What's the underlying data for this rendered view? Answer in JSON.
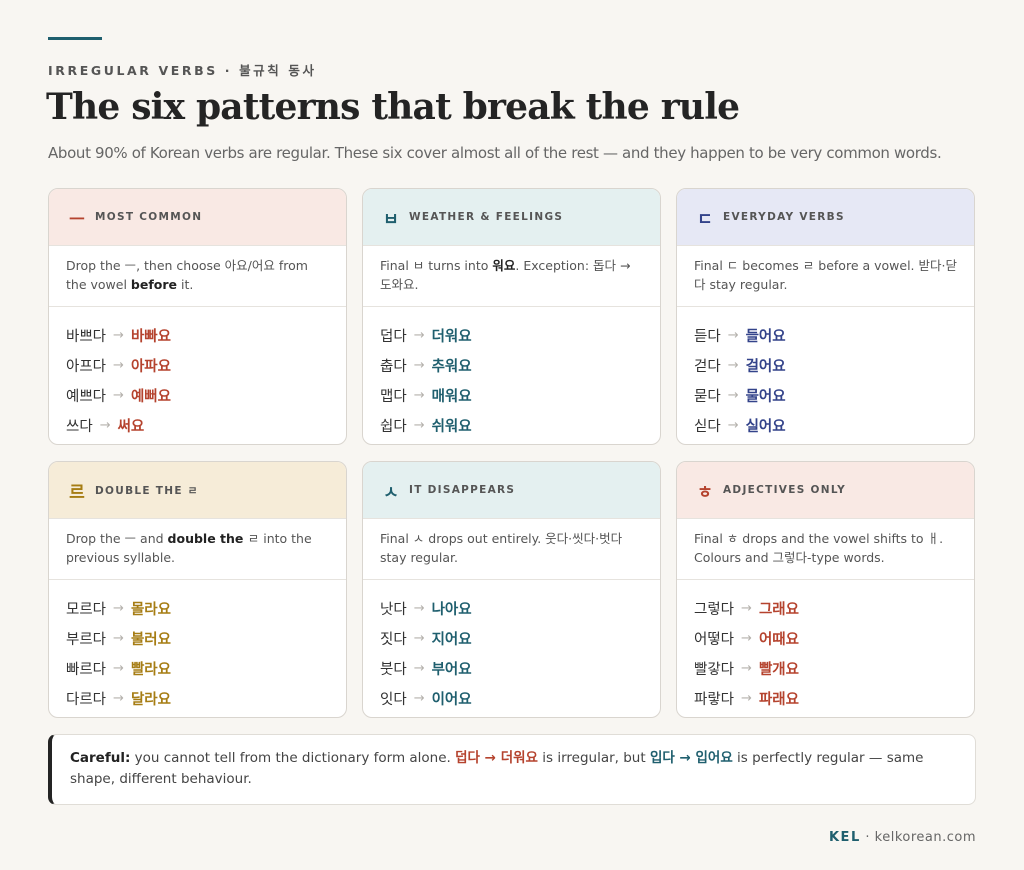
{
  "eyebrow": "IRREGULAR VERBS · 불규칙 동사",
  "title": "The six patterns that break the rule",
  "subtitle": "About 90% of Korean verbs are regular. These six cover almost all of the rest — and they happen to be very common words.",
  "colors": {
    "red": "#b5432e",
    "teal": "#1f5f6e",
    "navy": "#33438a",
    "gold": "#a67d14",
    "pink_head": "#f9e9e4",
    "teal_head": "#e4f0f0",
    "lavender_head": "#e6e8f5",
    "cream_head": "#f6ecd8"
  },
  "cards": [
    {
      "icon": "ㅡ",
      "label": "MOST COMMON",
      "desc": [
        {
          "t": "Drop the "
        },
        {
          "t": "ㅡ"
        },
        {
          "t": ", then choose 아요/어요 from the vowel "
        },
        {
          "t": "before",
          "b": true
        },
        {
          "t": " it."
        }
      ],
      "examples": [
        {
          "base": "바쁘다",
          "arrow": "→",
          "form": "바빠요"
        },
        {
          "base": "아프다",
          "arrow": "→",
          "form": "아파요"
        },
        {
          "base": "예쁘다",
          "arrow": "→",
          "form": "예뻐요"
        },
        {
          "base": "쓰다",
          "arrow": "→",
          "form": "써요"
        }
      ]
    },
    {
      "icon": "ㅂ",
      "label": "WEATHER & FEELINGS",
      "desc": [
        {
          "t": "Final "
        },
        {
          "t": "ㅂ"
        },
        {
          "t": " turns into "
        },
        {
          "t": "워요",
          "b": true
        },
        {
          "t": ". Exception: 돕다 → 도와요."
        }
      ],
      "examples": [
        {
          "base": "덥다",
          "arrow": "→",
          "form": "더워요"
        },
        {
          "base": "춥다",
          "arrow": "→",
          "form": "추워요"
        },
        {
          "base": "맵다",
          "arrow": "→",
          "form": "매워요"
        },
        {
          "base": "쉽다",
          "arrow": "→",
          "form": "쉬워요"
        }
      ]
    },
    {
      "icon": "ㄷ",
      "label": "EVERYDAY VERBS",
      "desc": [
        {
          "t": "Final "
        },
        {
          "t": "ㄷ"
        },
        {
          "t": " becomes "
        },
        {
          "t": "ㄹ"
        },
        {
          "t": " before a vowel. 받다·닫다 stay regular."
        }
      ],
      "examples": [
        {
          "base": "듣다",
          "arrow": "→",
          "form": "들어요"
        },
        {
          "base": "걷다",
          "arrow": "→",
          "form": "걸어요"
        },
        {
          "base": "묻다",
          "arrow": "→",
          "form": "물어요"
        },
        {
          "base": "싣다",
          "arrow": "→",
          "form": "실어요"
        }
      ]
    },
    {
      "icon": "르",
      "label": "DOUBLE THE ㄹ",
      "desc": [
        {
          "t": "Drop the "
        },
        {
          "t": "ㅡ"
        },
        {
          "t": " and "
        },
        {
          "t": "double the ",
          "b": true
        },
        {
          "t": "ㄹ"
        },
        {
          "t": " into the previous syllable."
        }
      ],
      "examples": [
        {
          "base": "모르다",
          "arrow": "→",
          "form": "몰라요"
        },
        {
          "base": "부르다",
          "arrow": "→",
          "form": "불러요"
        },
        {
          "base": "빠르다",
          "arrow": "→",
          "form": "빨라요"
        },
        {
          "base": "다르다",
          "arrow": "→",
          "form": "달라요"
        }
      ]
    },
    {
      "icon": "ㅅ",
      "label": "IT DISAPPEARS",
      "desc": [
        {
          "t": "Final "
        },
        {
          "t": "ㅅ"
        },
        {
          "t": " drops out entirely. 웃다·씻다·벗다 stay regular."
        }
      ],
      "examples": [
        {
          "base": "낫다",
          "arrow": "→",
          "form": "나아요"
        },
        {
          "base": "짓다",
          "arrow": "→",
          "form": "지어요"
        },
        {
          "base": "붓다",
          "arrow": "→",
          "form": "부어요"
        },
        {
          "base": "잇다",
          "arrow": "→",
          "form": "이어요"
        }
      ]
    },
    {
      "icon": "ㅎ",
      "label": "ADJECTIVES ONLY",
      "desc": [
        {
          "t": "Final "
        },
        {
          "t": "ㅎ"
        },
        {
          "t": " drops and the vowel shifts to "
        },
        {
          "t": "ㅐ"
        },
        {
          "t": ". Colours and 그렇다-type words."
        }
      ],
      "examples": [
        {
          "base": "그렇다",
          "arrow": "→",
          "form": "그래요"
        },
        {
          "base": "어떻다",
          "arrow": "→",
          "form": "어때요"
        },
        {
          "base": "빨갛다",
          "arrow": "→",
          "form": "빨개요"
        },
        {
          "base": "파랗다",
          "arrow": "→",
          "form": "파래요"
        }
      ]
    }
  ],
  "callout": {
    "lead": "Careful:",
    "text1": " you cannot tell from the dictionary form alone. ",
    "ex1": "덥다 → 더워요",
    "text2": " is irregular, but ",
    "ex2": "입다 → 입어요",
    "text3": " is perfectly regular — same shape, different behaviour."
  },
  "footer": {
    "brand": "KEL",
    "sep": " · ",
    "site": "kelkorean.com"
  }
}
